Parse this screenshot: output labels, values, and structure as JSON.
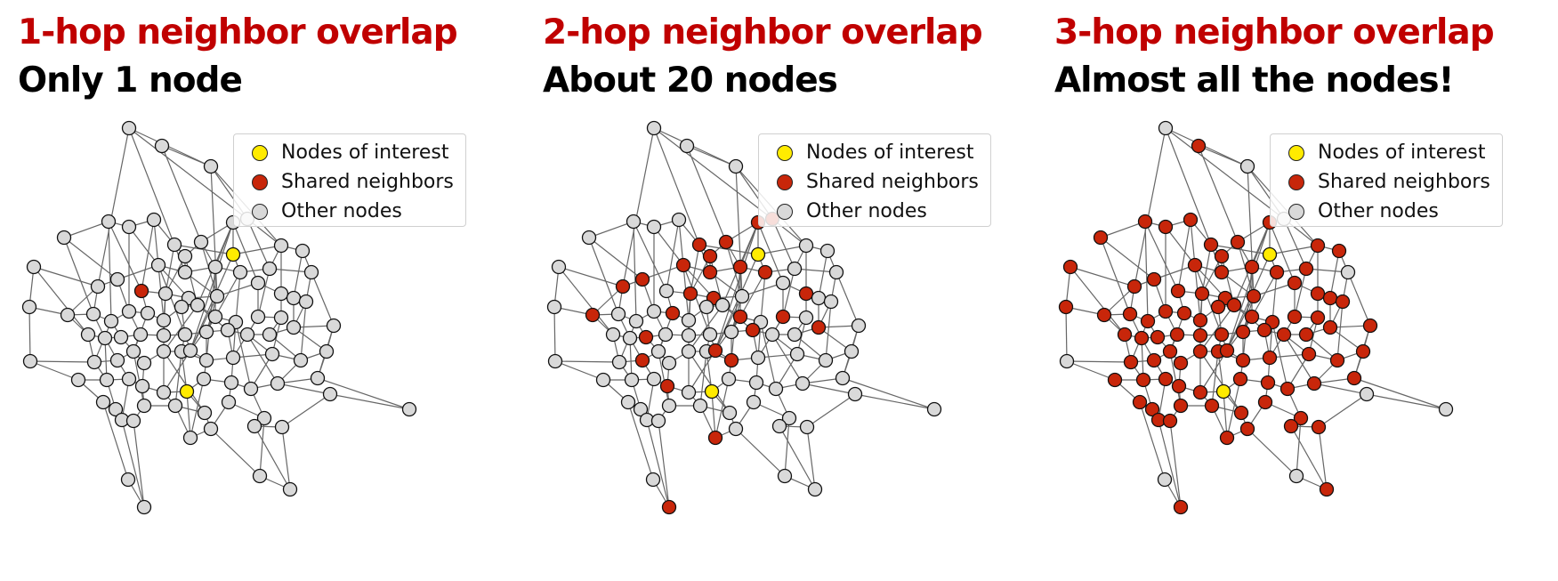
{
  "colors": {
    "interest": "#ffeb00",
    "shared": "#c8260a",
    "other": "#d9d9d9",
    "edge": "#666666",
    "title": "#c00000"
  },
  "legend": [
    {
      "label": "Nodes of interest",
      "type": "interest"
    },
    {
      "label": "Shared neighbors",
      "type": "shared"
    },
    {
      "label": "Other nodes",
      "type": "other"
    }
  ],
  "panels": [
    {
      "title": "1-hop neighbor overlap",
      "subtitle": "Only 1 node",
      "hops": 1
    },
    {
      "title": "2-hop neighbor overlap",
      "subtitle": "About 20 nodes",
      "hops": 2
    },
    {
      "title": "3-hop neighbor overlap",
      "subtitle": "Almost all the nodes!",
      "hops": 3
    }
  ]
}
